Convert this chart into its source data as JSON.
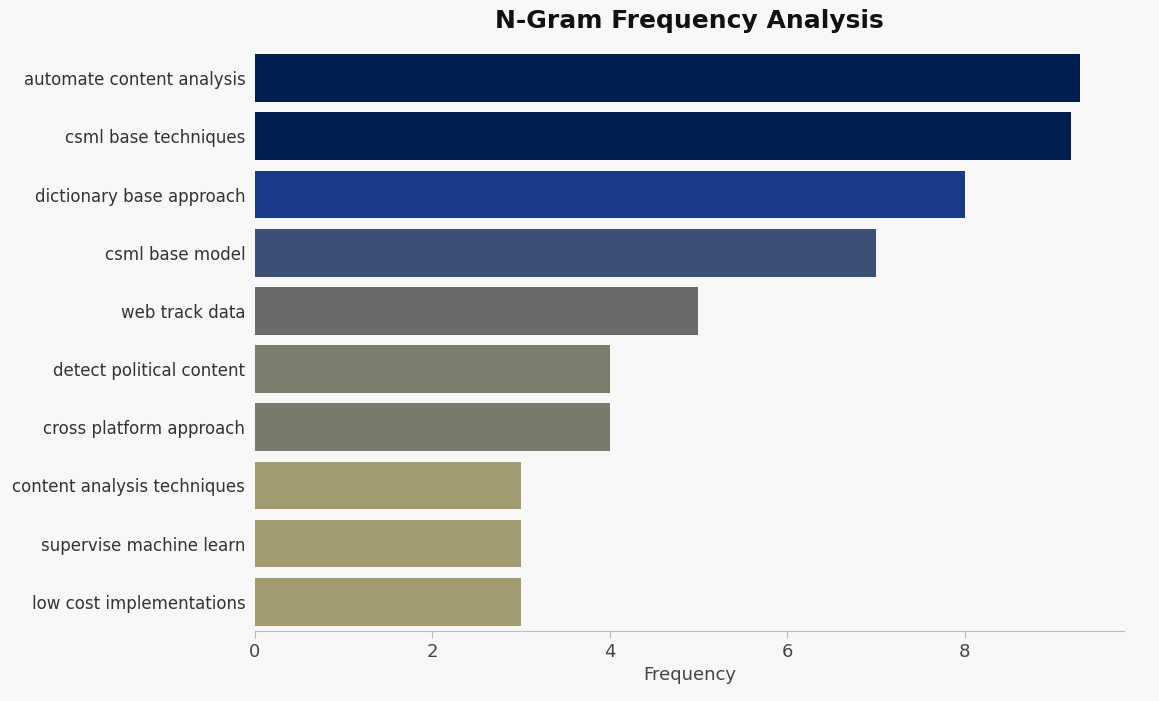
{
  "title": "N-Gram Frequency Analysis",
  "categories": [
    "automate content analysis",
    "csml base techniques",
    "dictionary base approach",
    "csml base model",
    "web track data",
    "detect political content",
    "cross platform approach",
    "content analysis techniques",
    "supervise machine learn",
    "low cost implementations"
  ],
  "values": [
    9.3,
    9.2,
    8.0,
    7.0,
    5.0,
    4.0,
    4.0,
    3.0,
    3.0,
    3.0
  ],
  "colors": [
    "#001f4e",
    "#001f4e",
    "#1a3a8a",
    "#3d4f78",
    "#6b6b6b",
    "#7d7d6b",
    "#7a7a6a",
    "#a09a6e",
    "#a09a6e",
    "#a09a6e"
  ],
  "xlabel": "Frequency",
  "xlim": [
    0,
    9.8
  ],
  "xticks": [
    0,
    2,
    4,
    6,
    8
  ],
  "background_color": "#f7f7f7",
  "title_fontsize": 18,
  "label_fontsize": 12,
  "tick_fontsize": 13
}
